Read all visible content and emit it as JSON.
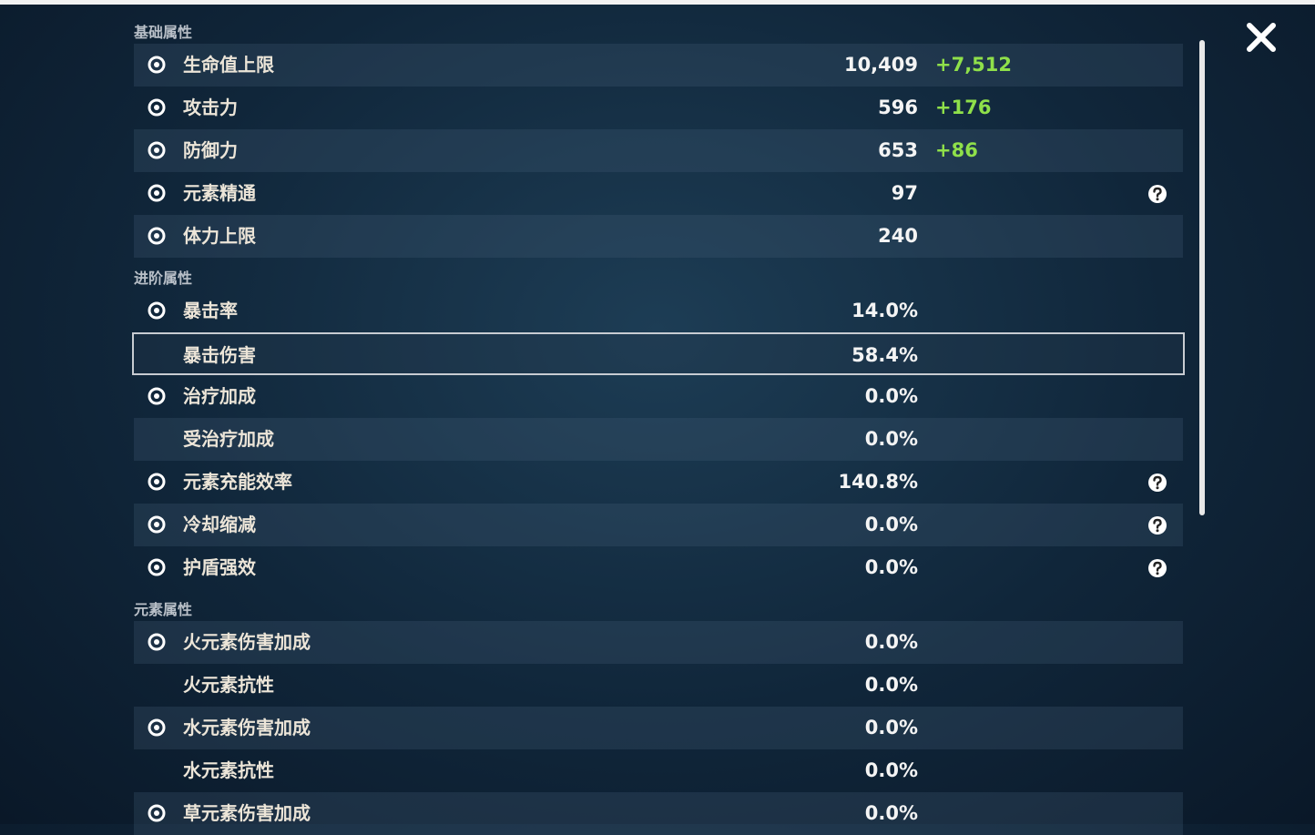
{
  "sections": [
    {
      "title": "基础属性",
      "rows": [
        {
          "label": "生命值上限",
          "value": "10,409",
          "bonus": "+7,512"
        },
        {
          "label": "攻击力",
          "value": "596",
          "bonus": "+176"
        },
        {
          "label": "防御力",
          "value": "653",
          "bonus": "+86"
        },
        {
          "label": "元素精通",
          "value": "97",
          "help": true
        },
        {
          "label": "体力上限",
          "value": "240"
        }
      ]
    },
    {
      "title": "进阶属性",
      "rows": [
        {
          "label": "暴击率",
          "value": "14.0%"
        },
        {
          "label": "暴击伤害",
          "value": "58.4%",
          "selected": true
        },
        {
          "label": "治疗加成",
          "value": "0.0%"
        },
        {
          "label": "受治疗加成",
          "value": "0.0%"
        },
        {
          "label": "元素充能效率",
          "value": "140.8%",
          "help": true
        },
        {
          "label": "冷却缩减",
          "value": "0.0%",
          "help": true
        },
        {
          "label": "护盾强效",
          "value": "0.0%",
          "help": true
        }
      ]
    },
    {
      "title": "元素属性",
      "rows": [
        {
          "label": "火元素伤害加成",
          "value": "0.0%"
        },
        {
          "label": "火元素抗性",
          "value": "0.0%"
        },
        {
          "label": "水元素伤害加成",
          "value": "0.0%"
        },
        {
          "label": "水元素抗性",
          "value": "0.0%"
        },
        {
          "label": "草元素伤害加成",
          "value": "0.0%"
        }
      ]
    }
  ]
}
